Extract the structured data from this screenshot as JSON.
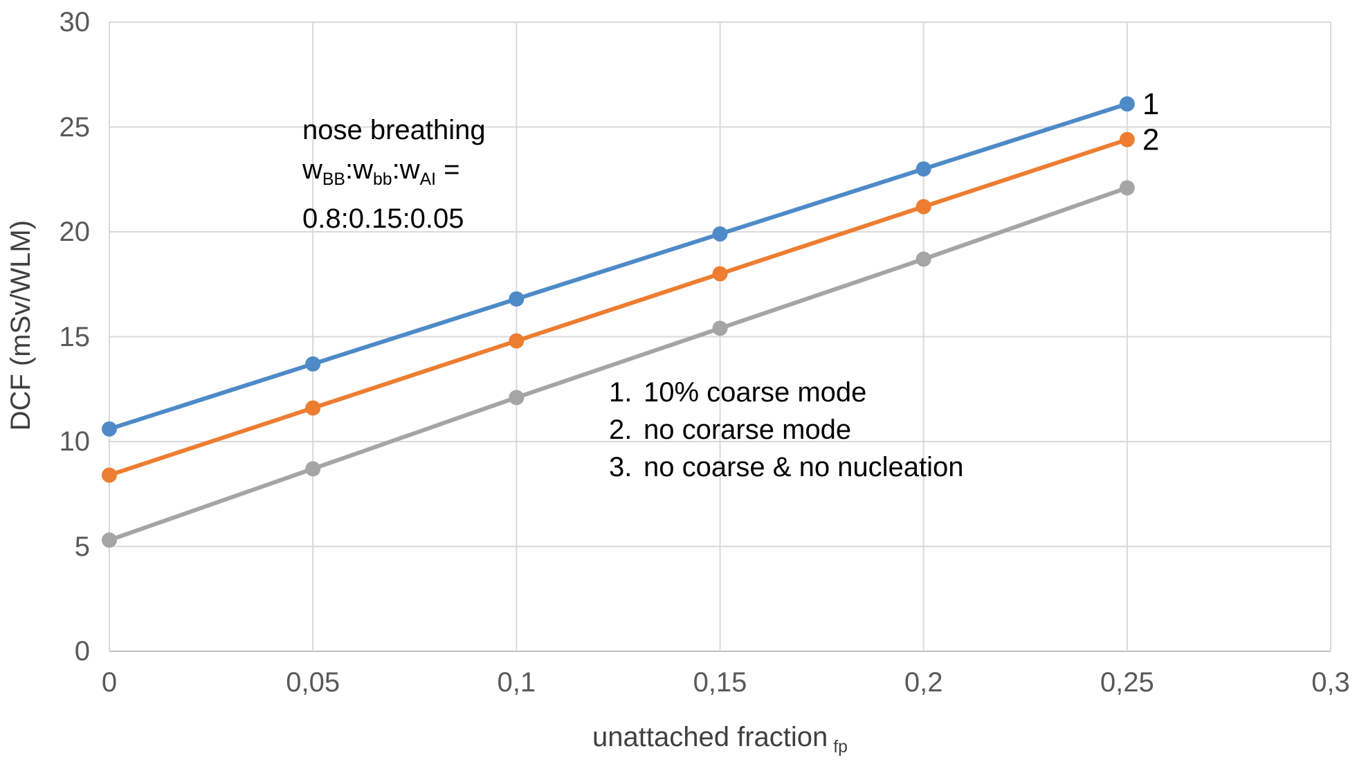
{
  "chart_data": {
    "type": "line",
    "title": "",
    "xlabel": "unattached fraction",
    "xlabel_sub": "fp",
    "ylabel": "DCF (mSv/WLM)",
    "xlim": [
      0,
      0.3
    ],
    "ylim": [
      0,
      30
    ],
    "grid": true,
    "x_ticks": [
      0,
      0.05,
      0.1,
      0.15,
      0.2,
      0.25,
      0.3
    ],
    "x_tick_labels": [
      "0",
      "0,05",
      "0,1",
      "0,15",
      "0,2",
      "0,25",
      "0,3"
    ],
    "y_ticks": [
      0,
      5,
      10,
      15,
      20,
      25,
      30
    ],
    "y_tick_labels": [
      "0",
      "5",
      "10",
      "15",
      "20",
      "25",
      "30"
    ],
    "x": [
      0,
      0.05,
      0.1,
      0.15,
      0.2,
      0.25
    ],
    "series": [
      {
        "name": "10% coarse mode",
        "end_label": "1",
        "color": "#4E8AC8",
        "values": [
          10.6,
          13.7,
          16.8,
          19.9,
          23.0,
          26.1
        ]
      },
      {
        "name": "no corarse mode",
        "end_label": "2",
        "color": "#ED7D31",
        "values": [
          8.4,
          11.6,
          14.8,
          18.0,
          21.2,
          24.4
        ]
      },
      {
        "name": "no coarse & no nucleation",
        "end_label": "",
        "color": "#A5A5A5",
        "values": [
          5.3,
          8.7,
          12.1,
          15.4,
          18.7,
          22.1
        ]
      }
    ],
    "grid_color": "#D9D9D9",
    "axis_color": "#BFBFBF",
    "tick_text_color": "#595959"
  },
  "annotation": {
    "line1": "nose breathing",
    "w1": "w",
    "s1": "BB",
    "c1": ":",
    "w2": "w",
    "s2": "bb",
    "c2": ":",
    "w3": "w",
    "s3": "AI",
    "eq": " =",
    "line3": "0.8:0.15:0.05"
  },
  "legend": {
    "items": [
      {
        "num": "1.",
        "label": "10% coarse mode"
      },
      {
        "num": "2.",
        "label": "no corarse mode"
      },
      {
        "num": "3.",
        "label": "no coarse & no nucleation"
      }
    ]
  }
}
